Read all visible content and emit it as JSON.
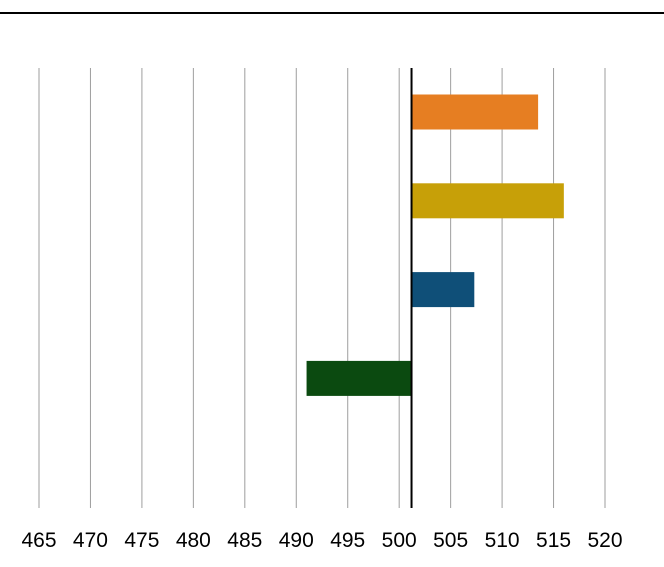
{
  "chart_data": {
    "type": "bar",
    "orientation": "horizontal",
    "baseline": 501.2,
    "xlim": [
      465,
      520
    ],
    "xticks": [
      465,
      470,
      475,
      480,
      485,
      490,
      495,
      500,
      505,
      510,
      515,
      520
    ],
    "grid": true,
    "title": "",
    "xlabel": "",
    "ylabel": "",
    "bars": [
      {
        "value": 513.5,
        "color": "#e67e22"
      },
      {
        "value": 516.0,
        "color": "#c7a008"
      },
      {
        "value": 507.3,
        "color": "#0f4f78"
      },
      {
        "value": 491.0,
        "color": "#0b4a10"
      }
    ]
  }
}
